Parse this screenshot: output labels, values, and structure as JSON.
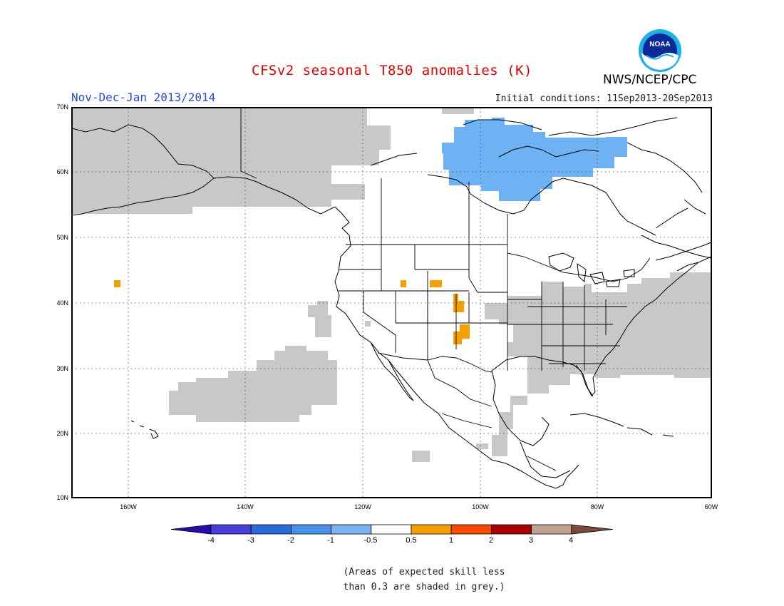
{
  "title": "CFSv2 seasonal T850 anomalies (K)",
  "subtitle": "Nov-Dec-Jan 2013/2014",
  "initial_conditions": "Initial conditions: 11Sep2013-20Sep2013",
  "agency": "NWS/NCEP/CPC",
  "logo": {
    "text": "NOAA",
    "icon": "noaa-logo"
  },
  "lat_labels": [
    "70N",
    "60N",
    "50N",
    "40N",
    "30N",
    "20N",
    "10N"
  ],
  "lon_labels": [
    "160W",
    "140W",
    "120W",
    "100W",
    "80W",
    "60W"
  ],
  "colorbar": {
    "ticks": [
      "-4",
      "-3",
      "-2",
      "-1",
      "-0.5",
      "0.5",
      "1",
      "2",
      "3",
      "4"
    ],
    "colors": [
      "#2a0aa8",
      "#4a3ed8",
      "#2a6ad8",
      "#4a92e8",
      "#7ab4f0",
      "#ffffff",
      "#f5a000",
      "#f54a00",
      "#a80000",
      "#c0a090",
      "#7a4a3a"
    ]
  },
  "note_line1": "(Areas of expected skill less",
  "note_line2": "than 0.3 are shaded in grey.)"
}
